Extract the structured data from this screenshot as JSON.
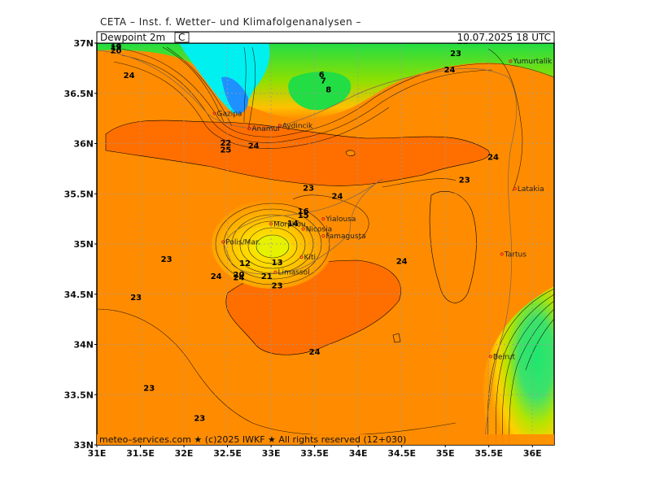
{
  "header": {
    "title": "CETA – Inst. f. Wetter– und Klimafolgenanalysen –"
  },
  "infobar": {
    "parameter": "Dewpoint 2m",
    "unit": "C",
    "valid_time": "10.07.2025 18 UTC"
  },
  "footer": {
    "text": "meteo–services.com ★ (c)2025 IWKF ★ All rights reserved (12+030)"
  },
  "axes": {
    "lat_labels": [
      "37N",
      "36.5N",
      "36N",
      "35.5N",
      "35N",
      "34.5N",
      "34N",
      "33.5N",
      "33N"
    ],
    "lon_labels": [
      "31E",
      "31.5E",
      "32E",
      "32.5E",
      "33E",
      "33.5E",
      "34E",
      "34.5E",
      "35E",
      "35.5E",
      "36E"
    ]
  },
  "colors": {
    "warm_orange": "#ff8c00",
    "deep_orange": "#ff6a00",
    "yellow": "#ffe000",
    "light_green": "#9be000",
    "green": "#1ee66e",
    "cyan": "#00f0f0",
    "blue": "#1e90ff"
  },
  "cities": [
    {
      "name": "Gazipa",
      "lon": 32.35,
      "lat": 36.3
    },
    {
      "name": "Anamur",
      "lon": 32.75,
      "lat": 36.15
    },
    {
      "name": "Aydincik",
      "lon": 33.1,
      "lat": 36.18
    },
    {
      "name": "Yumurtalik",
      "lon": 35.75,
      "lat": 36.82
    },
    {
      "name": "Latakia",
      "lon": 35.8,
      "lat": 35.55
    },
    {
      "name": "Tartus",
      "lon": 35.65,
      "lat": 34.9
    },
    {
      "name": "Beirut",
      "lon": 35.52,
      "lat": 33.88
    },
    {
      "name": "Morphou",
      "lon": 33.0,
      "lat": 35.2
    },
    {
      "name": "Nicosia",
      "lon": 33.37,
      "lat": 35.15
    },
    {
      "name": "Famagusta",
      "lon": 33.6,
      "lat": 35.08
    },
    {
      "name": "Yialousa",
      "lon": 33.6,
      "lat": 35.25
    },
    {
      "name": "Polis/Mar.",
      "lon": 32.45,
      "lat": 35.02
    },
    {
      "name": "Limassol",
      "lon": 33.05,
      "lat": 34.72
    },
    {
      "name": "Kiti",
      "lon": 33.35,
      "lat": 34.87
    }
  ],
  "contour_labels": [
    {
      "v": "18",
      "lon": 31.22,
      "lat": 36.96
    },
    {
      "v": "19",
      "lon": 31.22,
      "lat": 36.93
    },
    {
      "v": "20",
      "lon": 31.22,
      "lat": 36.9
    },
    {
      "v": "24",
      "lon": 31.37,
      "lat": 36.65
    },
    {
      "v": "22",
      "lon": 35.2,
      "lat": 36.99
    },
    {
      "v": "23",
      "lon": 35.12,
      "lat": 36.87
    },
    {
      "v": "24",
      "lon": 35.05,
      "lat": 36.71
    },
    {
      "v": "6",
      "lon": 33.58,
      "lat": 36.66
    },
    {
      "v": "7",
      "lon": 33.6,
      "lat": 36.6
    },
    {
      "v": "8",
      "lon": 33.66,
      "lat": 36.51
    },
    {
      "v": "22",
      "lon": 32.48,
      "lat": 35.98
    },
    {
      "v": "25",
      "lon": 32.48,
      "lat": 35.91
    },
    {
      "v": "24",
      "lon": 32.8,
      "lat": 35.95
    },
    {
      "v": "24",
      "lon": 35.55,
      "lat": 35.84
    },
    {
      "v": "23",
      "lon": 35.22,
      "lat": 35.61
    },
    {
      "v": "23",
      "lon": 33.43,
      "lat": 35.53
    },
    {
      "v": "24",
      "lon": 33.76,
      "lat": 35.45
    },
    {
      "v": "16",
      "lon": 33.37,
      "lat": 35.3
    },
    {
      "v": "15",
      "lon": 33.37,
      "lat": 35.26
    },
    {
      "v": "14",
      "lon": 33.25,
      "lat": 35.18
    },
    {
      "v": "23",
      "lon": 31.8,
      "lat": 34.82
    },
    {
      "v": "24",
      "lon": 32.37,
      "lat": 34.65
    },
    {
      "v": "24",
      "lon": 32.63,
      "lat": 34.64
    },
    {
      "v": "20",
      "lon": 32.63,
      "lat": 34.67
    },
    {
      "v": "21",
      "lon": 32.95,
      "lat": 34.65
    },
    {
      "v": "12",
      "lon": 32.7,
      "lat": 34.78
    },
    {
      "v": "13",
      "lon": 33.07,
      "lat": 34.79
    },
    {
      "v": "23",
      "lon": 33.07,
      "lat": 34.56
    },
    {
      "v": "23",
      "lon": 31.45,
      "lat": 34.44
    },
    {
      "v": "24",
      "lon": 34.5,
      "lat": 34.8
    },
    {
      "v": "24",
      "lon": 33.5,
      "lat": 33.9
    },
    {
      "v": "23",
      "lon": 31.6,
      "lat": 33.54
    },
    {
      "v": "23",
      "lon": 32.18,
      "lat": 33.24
    }
  ]
}
